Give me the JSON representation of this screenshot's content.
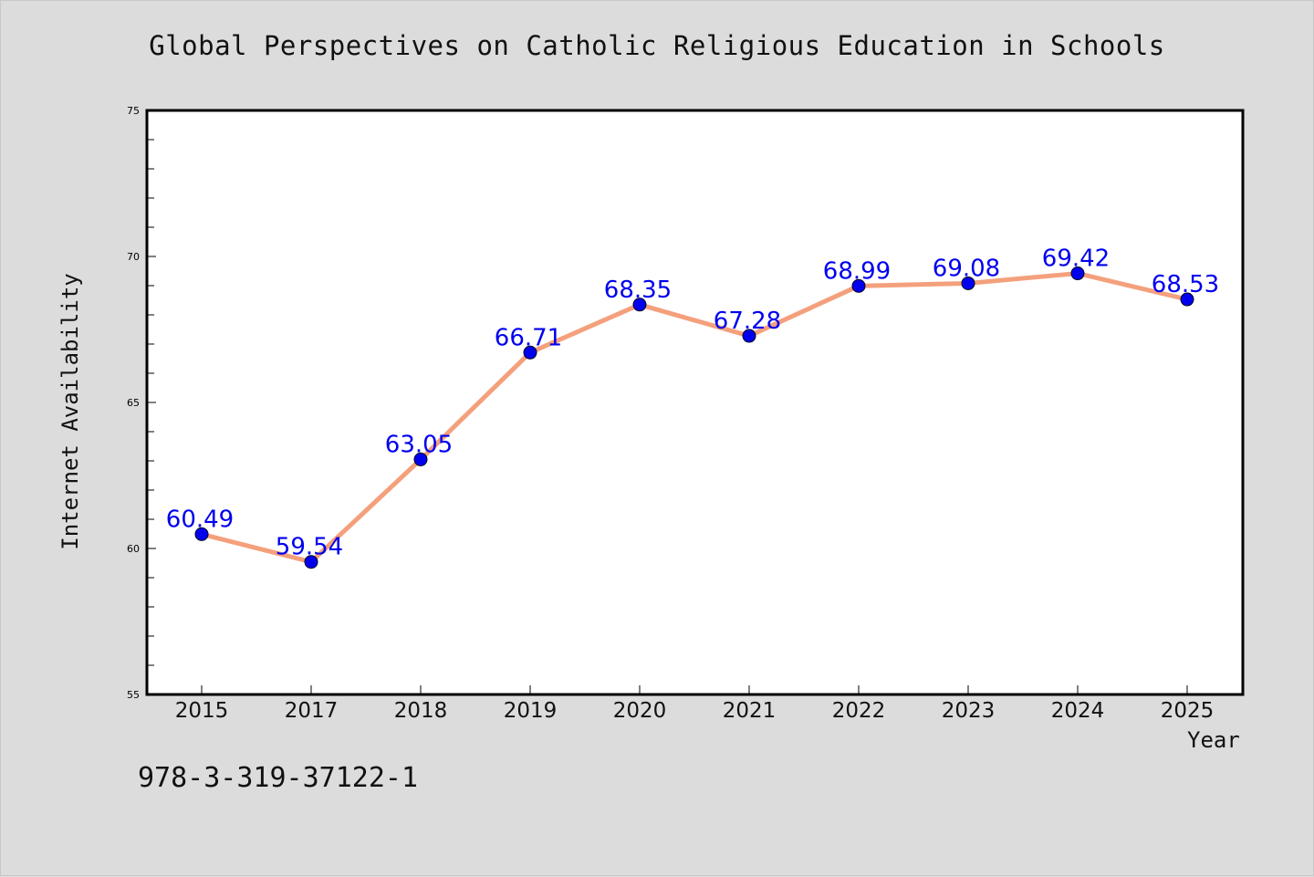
{
  "chart_data": {
    "type": "line",
    "title": "Global Perspectives on Catholic Religious Education in Schools",
    "xlabel": "Year",
    "ylabel": "Internet Availability",
    "categories": [
      "2015",
      "2017",
      "2018",
      "2019",
      "2020",
      "2021",
      "2022",
      "2023",
      "2024",
      "2025"
    ],
    "series": [
      {
        "values": [
          60.49,
          59.54,
          63.05,
          66.71,
          68.35,
          67.28,
          68.99,
          69.08,
          69.42,
          68.53
        ],
        "labels": [
          "60.49",
          "59.54",
          "63.05",
          "66.71",
          "68.35",
          "67.28",
          "68.99",
          "69.08",
          "69.42",
          "68.53"
        ]
      }
    ],
    "ylim": [
      55,
      75
    ],
    "yticks": [
      "55",
      "60",
      "65",
      "70",
      "75"
    ],
    "grid": false,
    "line_color": "#f4a07c",
    "marker_color": "#0000ee",
    "label_color": "#0000ee",
    "plot_background": "#ffffff",
    "page_background": "#dcdcdc"
  },
  "footer": {
    "code": "978-3-319-37122-1"
  }
}
